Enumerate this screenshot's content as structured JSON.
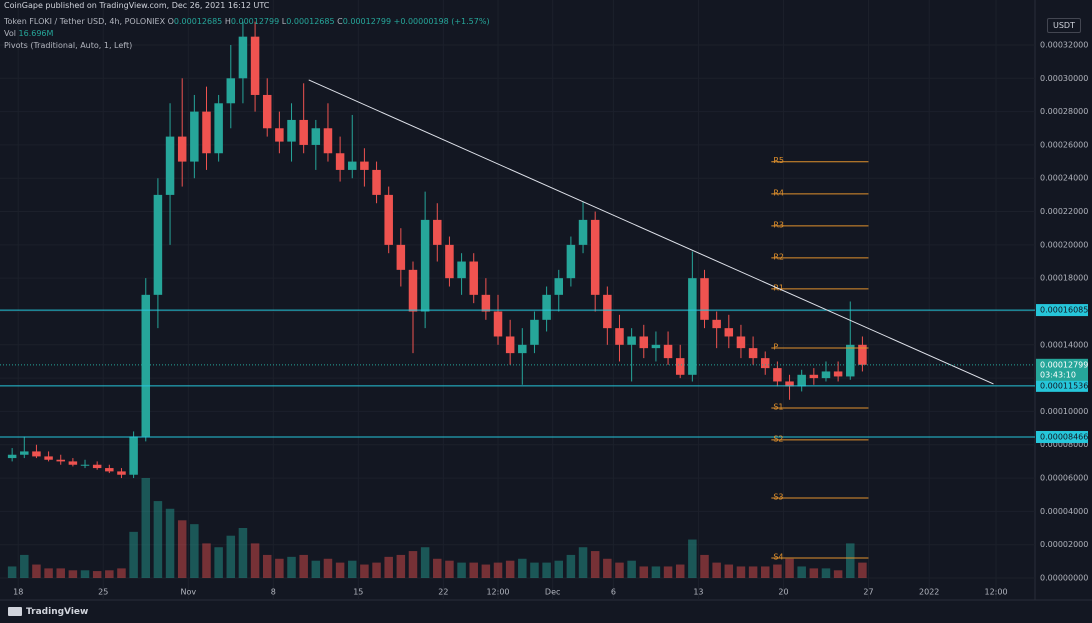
{
  "header": "CoinGape published on TradingView.com, Dec 26, 2021 16:12 UTC",
  "footer": "TradingView",
  "chart_data": {
    "type": "candlestick",
    "legend": {
      "symbol": "Token FLOKI / Tether USD, 4h, POLONIEX",
      "fields": [
        {
          "label": "O",
          "value": "0.00012685"
        },
        {
          "label": "H",
          "value": "0.00012799"
        },
        {
          "label": "L",
          "value": "0.00012685"
        },
        {
          "label": "C",
          "value": "0.00012799"
        }
      ],
      "change": "+0.00000198 (+1.57%)",
      "volume_label": "Vol",
      "volume_value": "16.696M",
      "indicator": "Pivots (Traditional, Auto, 1, Left)"
    },
    "currency": "USDT",
    "up_color": "#26a69a",
    "down_color": "#ef5350",
    "x": [
      "2021-10-17",
      "2021-10-18",
      "2021-10-19",
      "2021-10-20",
      "2021-10-21",
      "2021-10-22",
      "2021-10-23",
      "2021-10-24",
      "2021-10-25",
      "2021-10-26",
      "2021-10-27",
      "2021-10-28",
      "2021-10-29",
      "2021-10-30",
      "2021-10-31",
      "2021-11-01",
      "2021-11-02",
      "2021-11-03",
      "2021-11-04",
      "2021-11-05",
      "2021-11-06",
      "2021-11-07",
      "2021-11-08",
      "2021-11-09",
      "2021-11-10",
      "2021-11-11",
      "2021-11-12",
      "2021-11-13",
      "2021-11-14",
      "2021-11-15",
      "2021-11-16",
      "2021-11-17",
      "2021-11-18",
      "2021-11-19",
      "2021-11-20",
      "2021-11-21",
      "2021-11-22",
      "2021-11-23",
      "2021-11-24",
      "2021-11-25",
      "2021-11-26",
      "2021-11-27",
      "2021-11-28",
      "2021-11-29",
      "2021-11-30",
      "2021-12-01",
      "2021-12-02",
      "2021-12-03",
      "2021-12-04",
      "2021-12-05",
      "2021-12-06",
      "2021-12-07",
      "2021-12-08",
      "2021-12-09",
      "2021-12-10",
      "2021-12-11",
      "2021-12-12",
      "2021-12-13",
      "2021-12-14",
      "2021-12-15",
      "2021-12-16",
      "2021-12-17",
      "2021-12-18",
      "2021-12-19",
      "2021-12-20",
      "2021-12-21",
      "2021-12-22",
      "2021-12-23",
      "2021-12-24",
      "2021-12-25",
      "2021-12-26"
    ],
    "ohlc": [
      [
        7.2e-05,
        7.8e-05,
        7e-05,
        7.4e-05
      ],
      [
        7.4e-05,
        8.5e-05,
        7.2e-05,
        7.6e-05
      ],
      [
        7.6e-05,
        8e-05,
        7.2e-05,
        7.3e-05
      ],
      [
        7.3e-05,
        7.6e-05,
        7e-05,
        7.1e-05
      ],
      [
        7.1e-05,
        7.4e-05,
        6.8e-05,
        7e-05
      ],
      [
        7e-05,
        7.2e-05,
        6.7e-05,
        6.8e-05
      ],
      [
        6.8e-05,
        7.1e-05,
        6.6e-05,
        6.8e-05
      ],
      [
        6.8e-05,
        7e-05,
        6.5e-05,
        6.6e-05
      ],
      [
        6.6e-05,
        6.8e-05,
        6.3e-05,
        6.4e-05
      ],
      [
        6.4e-05,
        6.6e-05,
        6e-05,
        6.2e-05
      ],
      [
        6.2e-05,
        8.8e-05,
        6e-05,
        8.5e-05
      ],
      [
        8.5e-05,
        0.00018,
        8.2e-05,
        0.00017
      ],
      [
        0.00017,
        0.00024,
        0.00015,
        0.00023
      ],
      [
        0.00023,
        0.000285,
        0.0002,
        0.000265
      ],
      [
        0.000265,
        0.0003,
        0.000235,
        0.00025
      ],
      [
        0.00025,
        0.00029,
        0.00024,
        0.00028
      ],
      [
        0.00028,
        0.000295,
        0.000245,
        0.000255
      ],
      [
        0.000255,
        0.00029,
        0.00025,
        0.000285
      ],
      [
        0.000285,
        0.00032,
        0.00027,
        0.0003
      ],
      [
        0.0003,
        0.000334,
        0.000285,
        0.000325
      ],
      [
        0.000325,
        0.000334,
        0.00028,
        0.00029
      ],
      [
        0.00029,
        0.0003,
        0.000265,
        0.00027
      ],
      [
        0.00027,
        0.00028,
        0.000255,
        0.000262
      ],
      [
        0.000262,
        0.000285,
        0.00025,
        0.000275
      ],
      [
        0.000275,
        0.000297,
        0.000255,
        0.00026
      ],
      [
        0.00026,
        0.000275,
        0.000245,
        0.00027
      ],
      [
        0.00027,
        0.000285,
        0.00025,
        0.000255
      ],
      [
        0.000255,
        0.000265,
        0.000238,
        0.000245
      ],
      [
        0.000245,
        0.000278,
        0.00024,
        0.00025
      ],
      [
        0.00025,
        0.000258,
        0.000235,
        0.000245
      ],
      [
        0.000245,
        0.00025,
        0.000225,
        0.00023
      ],
      [
        0.00023,
        0.000235,
        0.000195,
        0.0002
      ],
      [
        0.0002,
        0.00021,
        0.000175,
        0.000185
      ],
      [
        0.000185,
        0.00019,
        0.000135,
        0.00016
      ],
      [
        0.00016,
        0.000232,
        0.00015,
        0.000215
      ],
      [
        0.000215,
        0.000225,
        0.00019,
        0.0002
      ],
      [
        0.0002,
        0.000205,
        0.000175,
        0.00018
      ],
      [
        0.00018,
        0.000195,
        0.00017,
        0.00019
      ],
      [
        0.00019,
        0.000195,
        0.000165,
        0.00017
      ],
      [
        0.00017,
        0.00018,
        0.000155,
        0.00016
      ],
      [
        0.00016,
        0.00017,
        0.00014,
        0.000145
      ],
      [
        0.000145,
        0.000155,
        0.000128,
        0.000135
      ],
      [
        0.000135,
        0.00015,
        0.000116,
        0.00014
      ],
      [
        0.00014,
        0.00016,
        0.000135,
        0.000155
      ],
      [
        0.000155,
        0.000175,
        0.000148,
        0.00017
      ],
      [
        0.00017,
        0.000185,
        0.00016,
        0.00018
      ],
      [
        0.00018,
        0.000205,
        0.000175,
        0.0002
      ],
      [
        0.0002,
        0.000226,
        0.000195,
        0.000215
      ],
      [
        0.000215,
        0.00022,
        0.00016,
        0.00017
      ],
      [
        0.00017,
        0.000175,
        0.00014,
        0.00015
      ],
      [
        0.00015,
        0.000158,
        0.00013,
        0.00014
      ],
      [
        0.00014,
        0.00015,
        0.000118,
        0.000145
      ],
      [
        0.000145,
        0.000152,
        0.000132,
        0.000138
      ],
      [
        0.000138,
        0.000148,
        0.00013,
        0.00014
      ],
      [
        0.00014,
        0.000148,
        0.000128,
        0.000132
      ],
      [
        0.000132,
        0.00014,
        0.00012,
        0.000122
      ],
      [
        0.000122,
        0.000196,
        0.000118,
        0.00018
      ],
      [
        0.00018,
        0.000185,
        0.00015,
        0.000155
      ],
      [
        0.000155,
        0.00016,
        0.000138,
        0.00015
      ],
      [
        0.00015,
        0.000158,
        0.000138,
        0.000145
      ],
      [
        0.000145,
        0.000152,
        0.000132,
        0.000138
      ],
      [
        0.000138,
        0.000145,
        0.000128,
        0.000132
      ],
      [
        0.000132,
        0.000136,
        0.000122,
        0.000126
      ],
      [
        0.000126,
        0.00013,
        0.000115,
        0.000118
      ],
      [
        0.000118,
        0.000122,
        0.000107,
        0.000115
      ],
      [
        0.000115,
        0.000125,
        0.000112,
        0.000122
      ],
      [
        0.000122,
        0.000126,
        0.000116,
        0.00012
      ],
      [
        0.00012,
        0.00013,
        0.000118,
        0.000124
      ],
      [
        0.000124,
        0.00013,
        0.000118,
        0.000121
      ],
      [
        0.000121,
        0.000166,
        0.000119,
        0.00014
      ],
      [
        0.00014,
        0.000145,
        0.000124,
        0.00012799
      ]
    ],
    "volume": [
      30,
      60,
      35,
      25,
      25,
      20,
      20,
      18,
      20,
      25,
      120,
      260,
      200,
      180,
      150,
      140,
      90,
      80,
      110,
      130,
      90,
      60,
      50,
      55,
      60,
      45,
      50,
      40,
      45,
      35,
      40,
      55,
      60,
      70,
      80,
      50,
      45,
      40,
      40,
      35,
      40,
      45,
      50,
      40,
      40,
      45,
      60,
      80,
      70,
      50,
      40,
      45,
      30,
      30,
      30,
      35,
      100,
      60,
      40,
      35,
      30,
      30,
      30,
      35,
      50,
      30,
      25,
      25,
      20,
      90,
      40
    ],
    "ylim": [
      -4.2e-06,
      0.000335
    ],
    "yticks": [
      {
        "value": 0,
        "label": "0.00000000"
      },
      {
        "value": 2e-05,
        "label": "0.00002000"
      },
      {
        "value": 4e-05,
        "label": "0.00004000"
      },
      {
        "value": 6e-05,
        "label": "0.00006000"
      },
      {
        "value": 8e-05,
        "label": "0.00008000"
      },
      {
        "value": 0.0001,
        "label": "0.00010000"
      },
      {
        "value": 0.00012,
        "label": "0.00012000"
      },
      {
        "value": 0.00014,
        "label": "0.00014000"
      },
      {
        "value": 0.00016,
        "label": "0.00016000"
      },
      {
        "value": 0.00018,
        "label": "0.00018000"
      },
      {
        "value": 0.0002,
        "label": "0.00020000"
      },
      {
        "value": 0.00022,
        "label": "0.00022000"
      },
      {
        "value": 0.00024,
        "label": "0.00024000"
      },
      {
        "value": 0.00026,
        "label": "0.00026000"
      },
      {
        "value": 0.00028,
        "label": "0.00028000"
      },
      {
        "value": 0.0003,
        "label": "0.00030000"
      },
      {
        "value": 0.00032,
        "label": "0.00032000"
      }
    ],
    "xlim": [
      "2021-10-16T12:00",
      "2022-01-09T17:00"
    ],
    "xticks": [
      {
        "value": "2021-10-18T00:00",
        "label": "18"
      },
      {
        "value": "2021-10-25T00:00",
        "label": "25"
      },
      {
        "value": "2021-11-01T00:00",
        "label": "Nov"
      },
      {
        "value": "2021-11-08T00:00",
        "label": "8"
      },
      {
        "value": "2021-11-15T00:00",
        "label": "15"
      },
      {
        "value": "2021-11-22T00:00",
        "label": "22"
      },
      {
        "value": "2021-11-26T12:00",
        "label": "12:00"
      },
      {
        "value": "2021-12-01T00:00",
        "label": "Dec"
      },
      {
        "value": "2021-12-06T00:00",
        "label": "6"
      },
      {
        "value": "2021-12-13T00:00",
        "label": "13"
      },
      {
        "value": "2021-12-20T00:00",
        "label": "20"
      },
      {
        "value": "2021-12-27T00:00",
        "label": "27"
      },
      {
        "value": "2022-01-01T00:00",
        "label": "2022"
      },
      {
        "value": "2022-01-06T12:00",
        "label": "12:00"
      }
    ],
    "levels": [
      0.00016085,
      0.00011536,
      8.466e-05
    ],
    "level_color": "#26c6da",
    "current_price": 0.00012799,
    "countdown": "03:43:10",
    "pivot_color": "#e0912d",
    "pivots": {
      "from": "2021-12-19T00:00",
      "to": "2021-12-27T00:00",
      "levels": [
        {
          "name": "R5",
          "value": 0.0002499
        },
        {
          "name": "R4",
          "value": 0.0002306
        },
        {
          "name": "R3",
          "value": 0.0002114
        },
        {
          "name": "R2",
          "value": 0.0001922
        },
        {
          "name": "R1",
          "value": 0.0001736
        },
        {
          "name": "P",
          "value": 0.0001381
        },
        {
          "name": "S1",
          "value": 0.0001021
        },
        {
          "name": "S2",
          "value": 8.29e-05
        },
        {
          "name": "S3",
          "value": 4.8e-05
        },
        {
          "name": "S4",
          "value": 1.2e-05
        }
      ]
    },
    "trendline": [
      [
        "2021-11-10T22:00",
        0.000299
      ],
      [
        "2022-01-06T07:00",
        0.0001165
      ]
    ]
  }
}
